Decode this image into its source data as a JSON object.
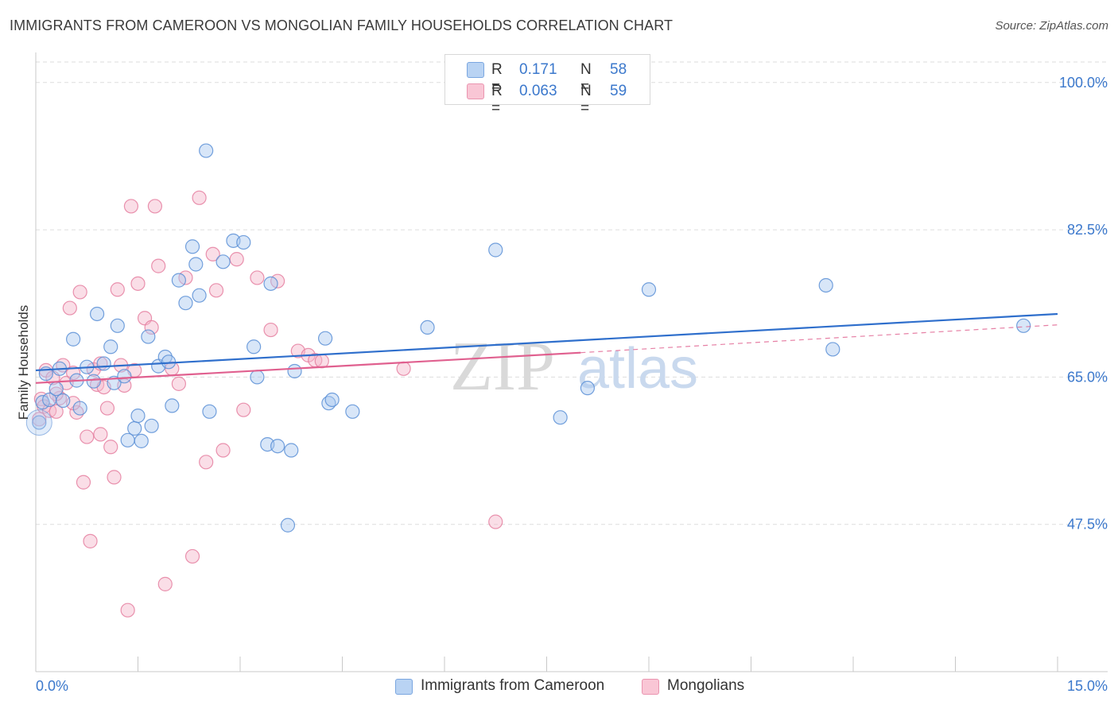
{
  "title": "IMMIGRANTS FROM CAMEROON VS MONGOLIAN FAMILY HOUSEHOLDS CORRELATION CHART",
  "source": "Source: ZipAtlas.com",
  "watermark": {
    "zip": "ZIP",
    "atlas": "atlas"
  },
  "legend": {
    "series1": {
      "r_label": "R =",
      "r_value": "0.171",
      "n_label": "N =",
      "n_value": "58"
    },
    "series2": {
      "r_label": "R =",
      "r_value": "0.063",
      "n_label": "N =",
      "n_value": "59"
    }
  },
  "colors": {
    "blue_fill": "#a9c8f0",
    "blue_stroke": "#5b8fd6",
    "blue_line": "#2f6fcc",
    "pink_fill": "#f5b6c9",
    "pink_stroke": "#e57fa0",
    "pink_line": "#e0608f",
    "axis_label": "#3b78cc",
    "grid": "#dddddd"
  },
  "chart_data": {
    "type": "scatter",
    "title": "IMMIGRANTS FROM CAMEROON VS MONGOLIAN FAMILY HOUSEHOLDS CORRELATION CHART",
    "xlabel": "",
    "ylabel": "Family Households",
    "xlim": [
      0,
      15
    ],
    "ylim": [
      30,
      103
    ],
    "x_tick_labels": [
      {
        "value": 0,
        "label": "0.0%"
      },
      {
        "value": 15,
        "label": "15.0%"
      }
    ],
    "y_ticks": [
      {
        "value": 47.5,
        "label": "47.5%"
      },
      {
        "value": 65.0,
        "label": "65.0%"
      },
      {
        "value": 82.5,
        "label": "82.5%"
      },
      {
        "value": 100.0,
        "label": "100.0%"
      }
    ],
    "series": [
      {
        "name": "Immigrants from Cameroon",
        "color": "blue",
        "points": [
          [
            0.05,
            59.6
          ],
          [
            0.1,
            62.0
          ],
          [
            0.15,
            65.4
          ],
          [
            0.2,
            62.3
          ],
          [
            0.3,
            63.6
          ],
          [
            0.35,
            66.0
          ],
          [
            0.4,
            62.2
          ],
          [
            0.55,
            69.5
          ],
          [
            0.6,
            64.6
          ],
          [
            0.65,
            61.3
          ],
          [
            0.75,
            66.2
          ],
          [
            0.85,
            64.5
          ],
          [
            0.9,
            72.5
          ],
          [
            1.0,
            66.6
          ],
          [
            1.1,
            68.6
          ],
          [
            1.15,
            64.3
          ],
          [
            1.2,
            71.1
          ],
          [
            1.3,
            65.1
          ],
          [
            1.35,
            57.5
          ],
          [
            1.45,
            58.9
          ],
          [
            1.5,
            60.4
          ],
          [
            1.55,
            57.4
          ],
          [
            1.65,
            69.8
          ],
          [
            1.7,
            59.2
          ],
          [
            1.8,
            66.3
          ],
          [
            1.9,
            67.4
          ],
          [
            1.95,
            66.8
          ],
          [
            2.0,
            61.6
          ],
          [
            2.1,
            76.5
          ],
          [
            2.2,
            73.8
          ],
          [
            2.3,
            80.5
          ],
          [
            2.35,
            78.4
          ],
          [
            2.4,
            74.7
          ],
          [
            2.5,
            91.9
          ],
          [
            2.55,
            60.9
          ],
          [
            2.75,
            78.7
          ],
          [
            2.9,
            81.2
          ],
          [
            3.05,
            81.0
          ],
          [
            3.2,
            68.6
          ],
          [
            3.25,
            65.0
          ],
          [
            3.4,
            57.0
          ],
          [
            3.45,
            76.1
          ],
          [
            3.55,
            56.8
          ],
          [
            3.7,
            47.4
          ],
          [
            3.75,
            56.3
          ],
          [
            3.8,
            65.7
          ],
          [
            4.25,
            69.6
          ],
          [
            4.3,
            61.9
          ],
          [
            4.35,
            62.3
          ],
          [
            4.65,
            60.9
          ],
          [
            5.75,
            70.9
          ],
          [
            6.75,
            80.1
          ],
          [
            7.7,
            60.2
          ],
          [
            8.1,
            63.7
          ],
          [
            9.0,
            75.4
          ],
          [
            11.6,
            75.9
          ],
          [
            11.7,
            68.3
          ],
          [
            14.5,
            71.1
          ]
        ],
        "trend": {
          "x": [
            0.0,
            15.0
          ],
          "y": [
            65.8,
            72.5
          ]
        }
      },
      {
        "name": "Mongolians",
        "color": "pink",
        "points": [
          [
            0.05,
            60.0
          ],
          [
            0.08,
            62.4
          ],
          [
            0.12,
            61.5
          ],
          [
            0.15,
            65.8
          ],
          [
            0.2,
            61.0
          ],
          [
            0.25,
            64.9
          ],
          [
            0.3,
            60.9
          ],
          [
            0.35,
            62.5
          ],
          [
            0.4,
            66.4
          ],
          [
            0.45,
            64.3
          ],
          [
            0.5,
            73.2
          ],
          [
            0.55,
            65.5
          ],
          [
            0.6,
            60.8
          ],
          [
            0.65,
            75.1
          ],
          [
            0.7,
            52.5
          ],
          [
            0.75,
            57.9
          ],
          [
            0.8,
            45.5
          ],
          [
            0.85,
            65.9
          ],
          [
            0.9,
            64.1
          ],
          [
            0.95,
            58.2
          ],
          [
            1.0,
            63.8
          ],
          [
            1.05,
            61.3
          ],
          [
            1.1,
            56.7
          ],
          [
            1.15,
            53.1
          ],
          [
            1.2,
            75.4
          ],
          [
            1.3,
            64.0
          ],
          [
            1.35,
            37.3
          ],
          [
            1.4,
            85.3
          ],
          [
            1.5,
            76.1
          ],
          [
            1.6,
            72.0
          ],
          [
            1.7,
            70.9
          ],
          [
            1.75,
            85.3
          ],
          [
            1.8,
            78.2
          ],
          [
            1.9,
            40.4
          ],
          [
            2.0,
            66.0
          ],
          [
            2.1,
            64.2
          ],
          [
            2.2,
            76.8
          ],
          [
            2.3,
            43.7
          ],
          [
            2.4,
            86.3
          ],
          [
            2.5,
            54.9
          ],
          [
            2.6,
            79.6
          ],
          [
            2.65,
            75.3
          ],
          [
            2.75,
            56.3
          ],
          [
            2.95,
            79.0
          ],
          [
            3.05,
            61.1
          ],
          [
            3.25,
            76.8
          ],
          [
            3.45,
            70.6
          ],
          [
            3.55,
            76.4
          ],
          [
            3.85,
            68.1
          ],
          [
            4.0,
            67.6
          ],
          [
            4.1,
            67.0
          ],
          [
            4.2,
            66.9
          ],
          [
            5.4,
            66.0
          ],
          [
            6.75,
            47.8
          ],
          [
            0.3,
            63.0
          ],
          [
            0.55,
            61.9
          ],
          [
            0.95,
            66.6
          ],
          [
            1.25,
            66.4
          ],
          [
            1.45,
            65.8
          ]
        ],
        "trend": {
          "x": [
            0.0,
            8.0
          ],
          "y": [
            64.3,
            67.9
          ]
        },
        "trend_extension": {
          "x": [
            8.0,
            15.0
          ],
          "y": [
            67.9,
            71.2
          ]
        }
      }
    ]
  },
  "bottom_legend": {
    "series1": "Immigrants from Cameroon",
    "series2": "Mongolians"
  }
}
